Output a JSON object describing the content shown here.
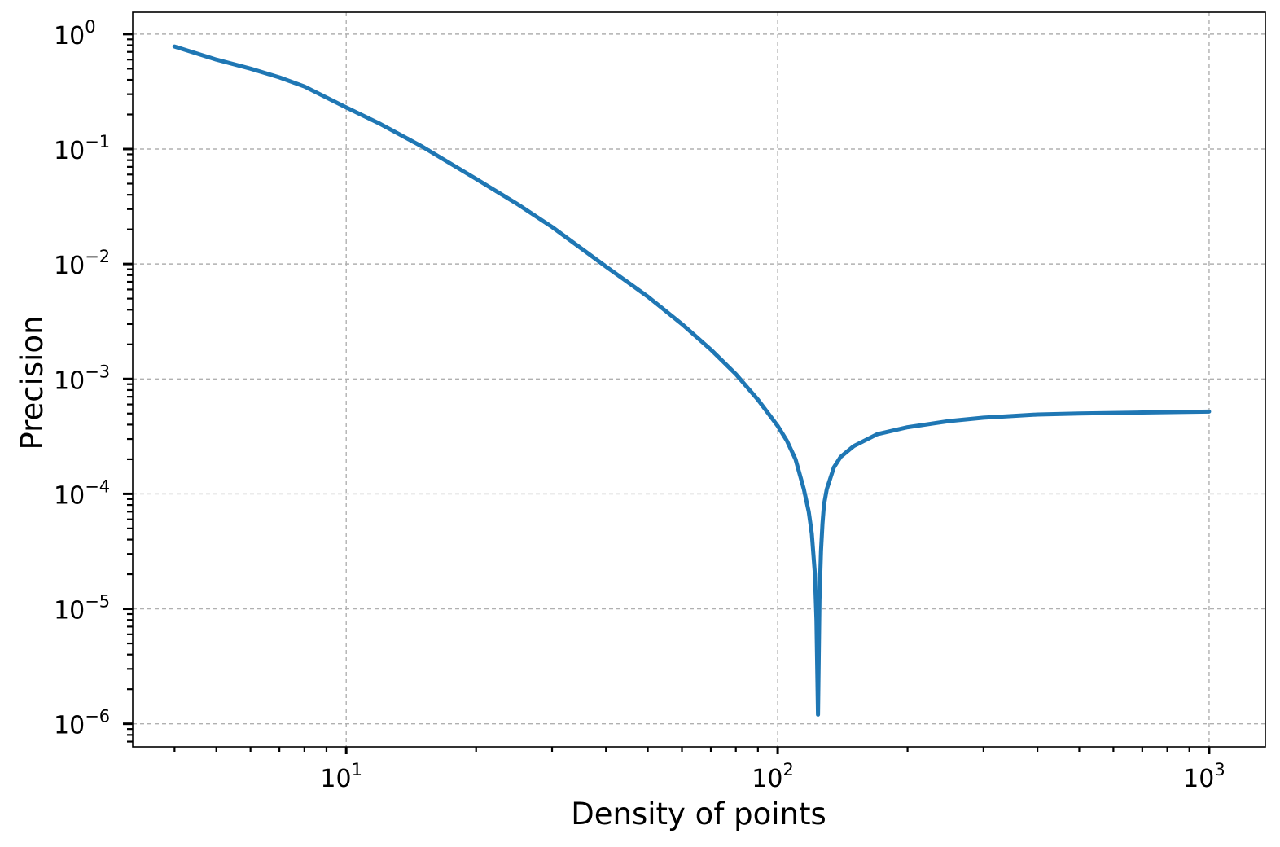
{
  "chart_data": {
    "type": "line",
    "xlabel": "Density of points",
    "ylabel": "Precision",
    "xscale": "log",
    "yscale": "log",
    "xlim": [
      3.2,
      1350
    ],
    "ylim": [
      6.3e-07,
      1.55
    ],
    "grid": true,
    "x_ticks": [
      {
        "value": 10,
        "base": "10",
        "exp": "1"
      },
      {
        "value": 100,
        "base": "10",
        "exp": "2"
      },
      {
        "value": 1000,
        "base": "10",
        "exp": "3"
      }
    ],
    "y_ticks": [
      {
        "value": 1,
        "base": "10",
        "exp": "0"
      },
      {
        "value": 0.1,
        "base": "10",
        "exp": "−1"
      },
      {
        "value": 0.01,
        "base": "10",
        "exp": "−2"
      },
      {
        "value": 0.001,
        "base": "10",
        "exp": "−3"
      },
      {
        "value": 0.0001,
        "base": "10",
        "exp": "−4"
      },
      {
        "value": 1e-05,
        "base": "10",
        "exp": "−5"
      },
      {
        "value": 1e-06,
        "base": "10",
        "exp": "−6"
      }
    ],
    "series": [
      {
        "color": "#1f77b4",
        "x": [
          4,
          5,
          6,
          7,
          8,
          10,
          12,
          15,
          20,
          25,
          30,
          40,
          50,
          60,
          70,
          80,
          90,
          100,
          105,
          110,
          115,
          118,
          120,
          122,
          123,
          124,
          125,
          126,
          127,
          128,
          130,
          135,
          140,
          150,
          170,
          200,
          250,
          300,
          400,
          500,
          700,
          1000
        ],
        "y": [
          0.78,
          0.6,
          0.5,
          0.42,
          0.35,
          0.23,
          0.165,
          0.105,
          0.055,
          0.033,
          0.021,
          0.0095,
          0.0052,
          0.003,
          0.0018,
          0.0011,
          0.00066,
          0.00039,
          0.00029,
          0.0002,
          0.00011,
          7e-05,
          4.5e-05,
          2e-05,
          8e-06,
          1.2e-06,
          1.2e-05,
          3.2e-05,
          5.5e-05,
          8e-05,
          0.00011,
          0.00017,
          0.00021,
          0.00026,
          0.00033,
          0.00038,
          0.00043,
          0.00046,
          0.00049,
          0.0005,
          0.00051,
          0.00052
        ]
      }
    ]
  }
}
